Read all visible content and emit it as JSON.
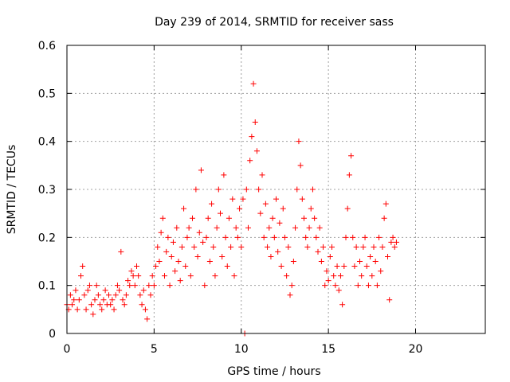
{
  "chart_data": {
    "type": "scatter",
    "title": "Day 239 of 2014, SRMTID for receiver sass",
    "xlabel": "GPS time / hours",
    "ylabel": "SRMTID / TECUs",
    "xlim": [
      0,
      24
    ],
    "ylim": [
      0,
      0.6
    ],
    "x_ticks": [
      0,
      5,
      10,
      15,
      20
    ],
    "x_tick_labels": [
      "0",
      "5",
      "10",
      "15",
      "20"
    ],
    "y_ticks": [
      0,
      0.1,
      0.2,
      0.3,
      0.4,
      0.5,
      0.6
    ],
    "y_tick_labels": [
      "0",
      "0.1",
      "0.2",
      "0.3",
      "0.4",
      "0.5",
      "0.6"
    ],
    "grid": true,
    "marker": "+",
    "color": "#ff0000",
    "series": [
      {
        "name": "SRMTID",
        "points": [
          [
            0.0,
            0.06
          ],
          [
            0.1,
            0.05
          ],
          [
            0.2,
            0.08
          ],
          [
            0.3,
            0.06
          ],
          [
            0.4,
            0.07
          ],
          [
            0.5,
            0.09
          ],
          [
            0.6,
            0.05
          ],
          [
            0.7,
            0.07
          ],
          [
            0.8,
            0.12
          ],
          [
            0.9,
            0.14
          ],
          [
            1.0,
            0.08
          ],
          [
            1.1,
            0.05
          ],
          [
            1.2,
            0.09
          ],
          [
            1.3,
            0.1
          ],
          [
            1.4,
            0.06
          ],
          [
            1.5,
            0.04
          ],
          [
            1.6,
            0.07
          ],
          [
            1.7,
            0.1
          ],
          [
            1.8,
            0.08
          ],
          [
            1.9,
            0.06
          ],
          [
            2.0,
            0.05
          ],
          [
            2.1,
            0.07
          ],
          [
            2.2,
            0.09
          ],
          [
            2.3,
            0.06
          ],
          [
            2.4,
            0.08
          ],
          [
            2.5,
            0.06
          ],
          [
            2.6,
            0.07
          ],
          [
            2.7,
            0.05
          ],
          [
            2.8,
            0.08
          ],
          [
            2.9,
            0.1
          ],
          [
            3.0,
            0.09
          ],
          [
            3.1,
            0.17
          ],
          [
            3.2,
            0.07
          ],
          [
            3.3,
            0.06
          ],
          [
            3.4,
            0.08
          ],
          [
            3.5,
            0.11
          ],
          [
            3.6,
            0.1
          ],
          [
            3.7,
            0.13
          ],
          [
            3.8,
            0.12
          ],
          [
            3.9,
            0.1
          ],
          [
            4.0,
            0.14
          ],
          [
            4.1,
            0.12
          ],
          [
            4.2,
            0.08
          ],
          [
            4.3,
            0.06
          ],
          [
            4.4,
            0.09
          ],
          [
            4.5,
            0.05
          ],
          [
            4.6,
            0.03
          ],
          [
            4.7,
            0.1
          ],
          [
            4.8,
            0.08
          ],
          [
            4.9,
            0.12
          ],
          [
            5.0,
            0.1
          ],
          [
            5.1,
            0.14
          ],
          [
            5.2,
            0.18
          ],
          [
            5.3,
            0.15
          ],
          [
            5.4,
            0.21
          ],
          [
            5.5,
            0.24
          ],
          [
            5.6,
            0.12
          ],
          [
            5.7,
            0.17
          ],
          [
            5.8,
            0.2
          ],
          [
            5.9,
            0.1
          ],
          [
            6.0,
            0.16
          ],
          [
            6.1,
            0.19
          ],
          [
            6.2,
            0.13
          ],
          [
            6.3,
            0.22
          ],
          [
            6.4,
            0.15
          ],
          [
            6.5,
            0.11
          ],
          [
            6.6,
            0.18
          ],
          [
            6.7,
            0.26
          ],
          [
            6.8,
            0.14
          ],
          [
            6.9,
            0.2
          ],
          [
            7.0,
            0.22
          ],
          [
            7.1,
            0.12
          ],
          [
            7.2,
            0.24
          ],
          [
            7.3,
            0.18
          ],
          [
            7.4,
            0.3
          ],
          [
            7.5,
            0.16
          ],
          [
            7.6,
            0.21
          ],
          [
            7.7,
            0.34
          ],
          [
            7.8,
            0.19
          ],
          [
            7.9,
            0.1
          ],
          [
            8.0,
            0.2
          ],
          [
            8.1,
            0.24
          ],
          [
            8.2,
            0.15
          ],
          [
            8.3,
            0.27
          ],
          [
            8.4,
            0.18
          ],
          [
            8.5,
            0.12
          ],
          [
            8.6,
            0.22
          ],
          [
            8.7,
            0.3
          ],
          [
            8.8,
            0.25
          ],
          [
            8.9,
            0.16
          ],
          [
            9.0,
            0.33
          ],
          [
            9.1,
            0.2
          ],
          [
            9.2,
            0.14
          ],
          [
            9.3,
            0.24
          ],
          [
            9.4,
            0.18
          ],
          [
            9.5,
            0.28
          ],
          [
            9.6,
            0.12
          ],
          [
            9.7,
            0.22
          ],
          [
            9.8,
            0.2
          ],
          [
            9.9,
            0.26
          ],
          [
            10.0,
            0.18
          ],
          [
            10.1,
            0.28
          ],
          [
            10.2,
            0.0
          ],
          [
            10.3,
            0.3
          ],
          [
            10.4,
            0.22
          ],
          [
            10.5,
            0.36
          ],
          [
            10.6,
            0.41
          ],
          [
            10.7,
            0.52
          ],
          [
            10.8,
            0.44
          ],
          [
            10.9,
            0.38
          ],
          [
            11.0,
            0.3
          ],
          [
            11.1,
            0.25
          ],
          [
            11.2,
            0.33
          ],
          [
            11.3,
            0.2
          ],
          [
            11.4,
            0.27
          ],
          [
            11.5,
            0.18
          ],
          [
            11.6,
            0.22
          ],
          [
            11.7,
            0.16
          ],
          [
            11.8,
            0.24
          ],
          [
            11.9,
            0.2
          ],
          [
            12.0,
            0.28
          ],
          [
            12.1,
            0.17
          ],
          [
            12.2,
            0.23
          ],
          [
            12.3,
            0.14
          ],
          [
            12.4,
            0.26
          ],
          [
            12.5,
            0.2
          ],
          [
            12.6,
            0.12
          ],
          [
            12.7,
            0.18
          ],
          [
            12.8,
            0.08
          ],
          [
            12.9,
            0.1
          ],
          [
            13.0,
            0.15
          ],
          [
            13.1,
            0.22
          ],
          [
            13.2,
            0.3
          ],
          [
            13.3,
            0.4
          ],
          [
            13.4,
            0.35
          ],
          [
            13.5,
            0.28
          ],
          [
            13.6,
            0.24
          ],
          [
            13.7,
            0.2
          ],
          [
            13.8,
            0.18
          ],
          [
            13.9,
            0.22
          ],
          [
            14.0,
            0.26
          ],
          [
            14.1,
            0.3
          ],
          [
            14.2,
            0.24
          ],
          [
            14.3,
            0.2
          ],
          [
            14.4,
            0.17
          ],
          [
            14.5,
            0.22
          ],
          [
            14.6,
            0.15
          ],
          [
            14.7,
            0.18
          ],
          [
            14.8,
            0.1
          ],
          [
            14.9,
            0.13
          ],
          [
            15.0,
            0.11
          ],
          [
            15.1,
            0.16
          ],
          [
            15.2,
            0.18
          ],
          [
            15.3,
            0.12
          ],
          [
            15.4,
            0.1
          ],
          [
            15.5,
            0.14
          ],
          [
            15.6,
            0.09
          ],
          [
            15.7,
            0.12
          ],
          [
            15.8,
            0.06
          ],
          [
            15.9,
            0.14
          ],
          [
            16.0,
            0.2
          ],
          [
            16.1,
            0.26
          ],
          [
            16.2,
            0.33
          ],
          [
            16.3,
            0.37
          ],
          [
            16.4,
            0.2
          ],
          [
            16.5,
            0.14
          ],
          [
            16.6,
            0.18
          ],
          [
            16.7,
            0.1
          ],
          [
            16.8,
            0.15
          ],
          [
            16.9,
            0.12
          ],
          [
            17.0,
            0.18
          ],
          [
            17.1,
            0.2
          ],
          [
            17.2,
            0.14
          ],
          [
            17.3,
            0.1
          ],
          [
            17.4,
            0.16
          ],
          [
            17.5,
            0.12
          ],
          [
            17.6,
            0.18
          ],
          [
            17.7,
            0.15
          ],
          [
            17.8,
            0.1
          ],
          [
            17.9,
            0.2
          ],
          [
            18.0,
            0.13
          ],
          [
            18.1,
            0.18
          ],
          [
            18.2,
            0.24
          ],
          [
            18.3,
            0.27
          ],
          [
            18.4,
            0.16
          ],
          [
            18.5,
            0.07
          ],
          [
            18.6,
            0.19
          ],
          [
            18.7,
            0.2
          ],
          [
            18.8,
            0.18
          ],
          [
            18.9,
            0.19
          ]
        ]
      }
    ]
  }
}
